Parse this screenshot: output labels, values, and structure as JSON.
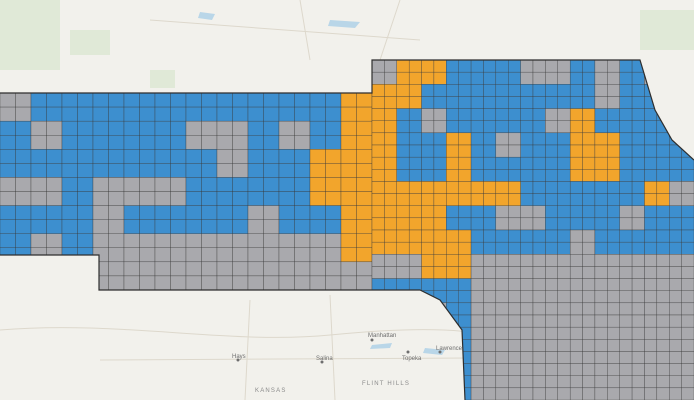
{
  "map": {
    "colors": {
      "background": "#f2f1ec",
      "water": "#b9d6e8",
      "county_blue": "#3d8fcf",
      "county_gray": "#a9a9ad",
      "county_orange": "#f2a52c",
      "border": "#3a3a3a",
      "road": "#d9d4c8",
      "green": "#dfe8d6"
    },
    "labels": {
      "manhattan": "Manhattan",
      "topeka": "Topeka",
      "lawrence": "Lawrence",
      "salina": "Salina",
      "hays": "Hays",
      "kansas": "KANSAS",
      "flint_hills": "FLINT HILLS"
    }
  }
}
